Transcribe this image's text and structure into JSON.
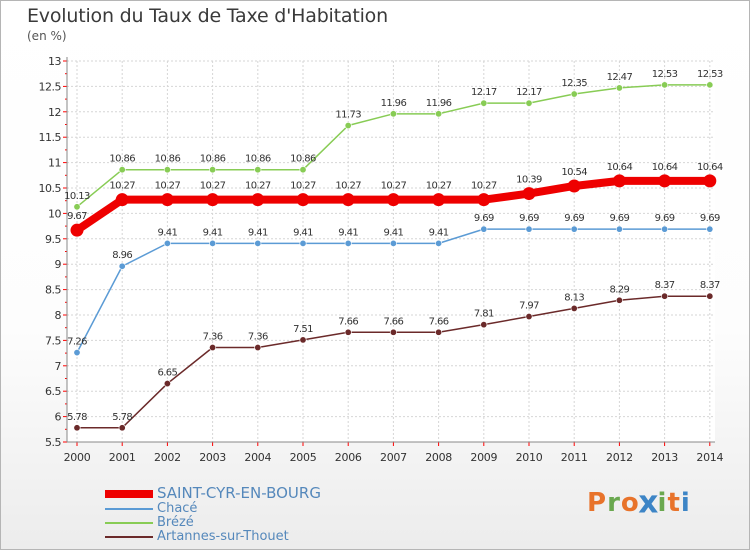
{
  "title": "Evolution du Taux de Taxe d'Habitation",
  "unit": "(en %)",
  "logo": {
    "text": "Proxiti",
    "colors": [
      "#e8732b",
      "#6aa84f",
      "#e8732b",
      "#3d85c6",
      "#6aa84f",
      "#e8732b",
      "#3d85c6"
    ]
  },
  "chart_data": {
    "type": "line",
    "x": [
      "2000",
      "2001",
      "2002",
      "2003",
      "2004",
      "2005",
      "2006",
      "2007",
      "2008",
      "2009",
      "2010",
      "2011",
      "2012",
      "2013",
      "2014"
    ],
    "ylim": [
      5.5,
      13
    ],
    "yticks": [
      "5.5",
      "6",
      "6.5",
      "7",
      "7.5",
      "8",
      "8.5",
      "9",
      "9.5",
      "10",
      "10.5",
      "11",
      "11.5",
      "12",
      "12.5",
      "13"
    ],
    "grid": true,
    "legend_position": "bottom-left",
    "series": [
      {
        "name": "SAINT-CYR-EN-BOURG",
        "color": "#ee0000",
        "width": 8,
        "values": [
          9.67,
          10.27,
          10.27,
          10.27,
          10.27,
          10.27,
          10.27,
          10.27,
          10.27,
          10.27,
          10.39,
          10.54,
          10.64,
          10.64,
          10.64
        ],
        "labels": [
          "9.67",
          "10.27",
          "10.27",
          "10.27",
          "10.27",
          "10.27",
          "10.27",
          "10.27",
          "10.27",
          "10.27",
          "10.39",
          "10.54",
          "10.64",
          "10.64",
          "10.64"
        ]
      },
      {
        "name": "Chacé",
        "color": "#5b9bd5",
        "width": 1.5,
        "values": [
          7.26,
          8.96,
          9.41,
          9.41,
          9.41,
          9.41,
          9.41,
          9.41,
          9.41,
          9.69,
          9.69,
          9.69,
          9.69,
          9.69,
          9.69
        ],
        "labels": [
          "7.26",
          "8.96",
          "9.41",
          "9.41",
          "9.41",
          "9.41",
          "9.41",
          "9.41",
          "9.41",
          "9.69",
          "9.69",
          "9.69",
          "9.69",
          "9.69",
          "9.69"
        ]
      },
      {
        "name": "Brézé",
        "color": "#88cc55",
        "width": 1.5,
        "values": [
          10.13,
          10.86,
          10.86,
          10.86,
          10.86,
          10.86,
          11.73,
          11.96,
          11.96,
          12.17,
          12.17,
          12.35,
          12.47,
          12.53,
          12.53
        ],
        "labels": [
          "10.13",
          "10.86",
          "10.86",
          "10.86",
          "10.86",
          "10.86",
          "11.73",
          "11.96",
          "11.96",
          "12.17",
          "12.17",
          "12.35",
          "12.47",
          "12.53",
          "12.53"
        ]
      },
      {
        "name": "Artannes-sur-Thouet",
        "color": "#6b2a2a",
        "width": 1.5,
        "values": [
          5.78,
          5.78,
          6.65,
          7.36,
          7.36,
          7.51,
          7.66,
          7.66,
          7.66,
          7.81,
          7.97,
          8.13,
          8.29,
          8.37,
          8.37
        ],
        "labels": [
          "5.78",
          "5.78",
          "6.65",
          "7.36",
          "7.36",
          "7.51",
          "7.66",
          "7.66",
          "7.66",
          "7.81",
          "7.97",
          "8.13",
          "8.29",
          "8.37",
          "8.37"
        ]
      }
    ]
  }
}
